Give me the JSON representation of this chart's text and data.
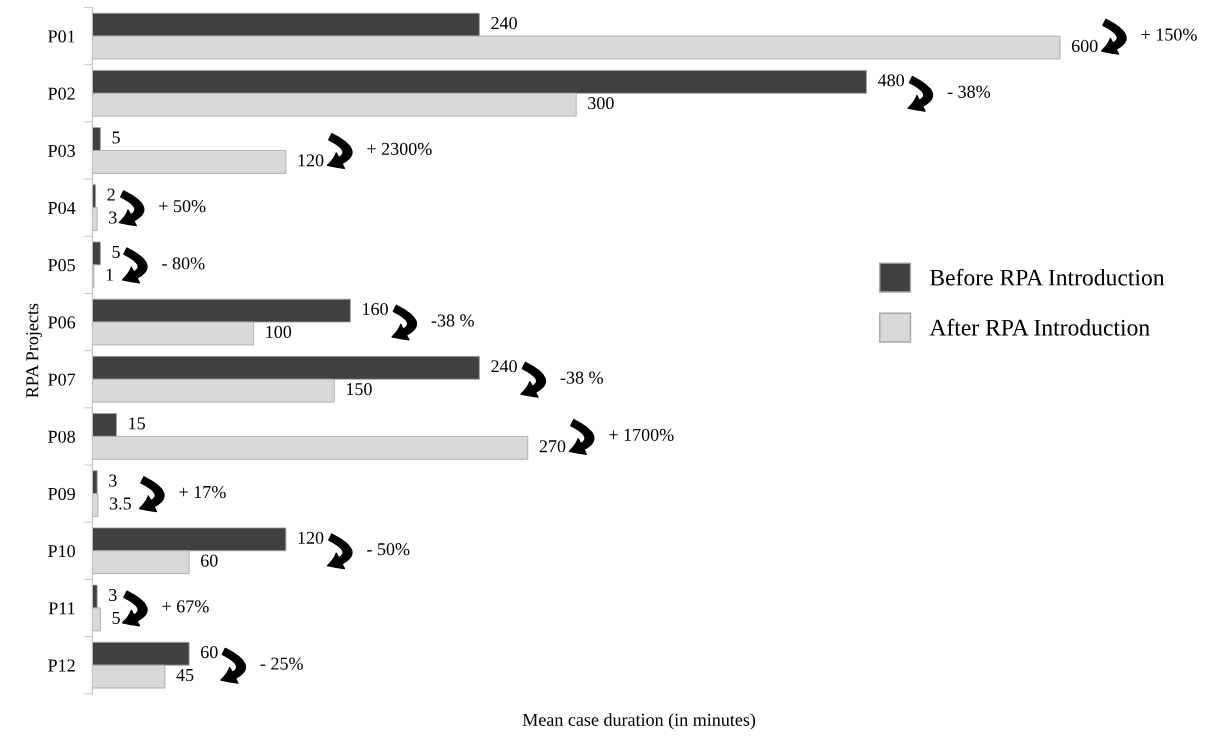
{
  "chart_data": {
    "type": "bar",
    "orientation": "horizontal",
    "xlabel": "Mean case duration (in minutes)",
    "ylabel": "RPA Projects",
    "categories": [
      "P01",
      "P02",
      "P03",
      "P04",
      "P05",
      "P06",
      "P07",
      "P08",
      "P09",
      "P10",
      "P11",
      "P12"
    ],
    "series": [
      {
        "name": "Before RPA Introduction",
        "color": "#404040",
        "values": [
          240,
          480,
          5,
          2,
          5,
          160,
          240,
          15,
          3,
          120,
          3,
          60
        ]
      },
      {
        "name": "After RPA Introduction",
        "color": "#d9d9d9",
        "values": [
          600,
          300,
          120,
          3,
          1,
          100,
          150,
          270,
          3.5,
          60,
          5,
          45
        ]
      }
    ],
    "data_labels": true,
    "legend": "right",
    "grid": false,
    "annotations": [
      "+ 150%",
      "- 38%",
      "+ 2300%",
      "+ 50%",
      "- 80%",
      "-38 %",
      "-38 %",
      "+ 1700%",
      "+ 17%",
      "- 50%",
      "+ 67%",
      "- 25%"
    ]
  }
}
